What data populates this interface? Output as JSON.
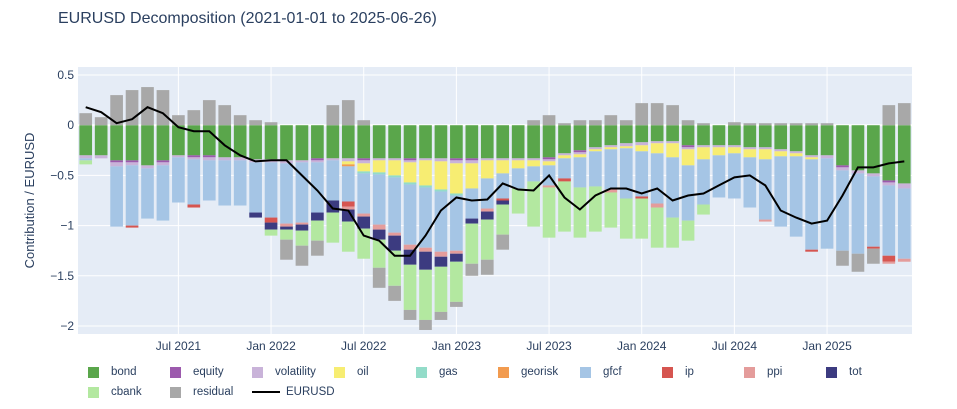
{
  "chart_data": {
    "type": "bar",
    "title": "EURUSD Decomposition (2021-01-01 to 2025-06-26)",
    "xlabel": "",
    "ylabel": "Contribution / EURUSD",
    "ylim": [
      -2.08,
      0.58
    ],
    "yticks": [
      0.5,
      0,
      -0.5,
      -1,
      -1.5,
      -2
    ],
    "ytick_labels": [
      "0.5",
      "0",
      "−0.5",
      "−1",
      "−1.5",
      "−2"
    ],
    "xtick_labels": [
      "Jul 2021",
      "Jan 2022",
      "Jul 2022",
      "Jan 2023",
      "Jul 2023",
      "Jan 2024",
      "Jul 2024",
      "Jan 2025"
    ],
    "grid": true,
    "barmode": "relative",
    "legend_position": "bottom",
    "start_month": "2021-01",
    "n_periods": 54,
    "series": [
      {
        "name": "bond",
        "color": "#5aa64b",
        "values": [
          -0.3,
          -0.3,
          -0.35,
          -0.35,
          -0.4,
          -0.35,
          -0.3,
          -0.3,
          -0.3,
          -0.32,
          -0.32,
          -0.34,
          -0.34,
          -0.35,
          -0.35,
          -0.33,
          -0.33,
          -0.33,
          -0.33,
          -0.33,
          -0.33,
          -0.33,
          -0.33,
          -0.33,
          -0.33,
          -0.33,
          -0.33,
          -0.33,
          -0.33,
          -0.33,
          -0.32,
          -0.28,
          -0.25,
          -0.22,
          -0.2,
          -0.18,
          -0.17,
          -0.16,
          -0.16,
          -0.2,
          -0.2,
          -0.2,
          -0.2,
          -0.22,
          -0.22,
          -0.24,
          -0.26,
          -0.3,
          -0.3,
          -0.4,
          -0.45,
          -0.48,
          -0.55,
          -0.58
        ]
      },
      {
        "name": "equity",
        "color": "#9c5aad",
        "values": [
          0,
          0,
          -0.02,
          -0.02,
          0,
          -0.02,
          0,
          -0.02,
          -0.02,
          0,
          0,
          0,
          0,
          0,
          0,
          -0.02,
          0,
          0,
          -0.02,
          0,
          0,
          -0.02,
          0,
          0,
          -0.02,
          -0.02,
          0,
          0,
          0,
          0,
          -0.02,
          0,
          -0.02,
          0,
          0,
          0,
          0,
          0,
          0,
          -0.02,
          0,
          0,
          0,
          0,
          0,
          0,
          0,
          0,
          0,
          -0.02,
          0,
          0,
          -0.02,
          0
        ]
      },
      {
        "name": "volatility",
        "color": "#c9b3d9",
        "values": [
          -0.03,
          -0.03,
          -0.04,
          -0.03,
          -0.03,
          -0.03,
          -0.02,
          -0.02,
          -0.03,
          -0.03,
          -0.03,
          -0.03,
          -0.03,
          -0.03,
          -0.02,
          -0.02,
          -0.02,
          -0.03,
          -0.03,
          -0.02,
          -0.02,
          -0.02,
          -0.02,
          -0.03,
          -0.03,
          -0.03,
          -0.02,
          -0.02,
          -0.02,
          -0.02,
          -0.02,
          -0.02,
          -0.02,
          -0.02,
          -0.02,
          -0.03,
          -0.03,
          -0.02,
          -0.02,
          -0.02,
          -0.02,
          -0.02,
          -0.02,
          -0.02,
          -0.02,
          -0.02,
          -0.02,
          -0.02,
          -0.03,
          -0.03,
          -0.03,
          -0.03,
          -0.03,
          -0.05
        ]
      },
      {
        "name": "oil",
        "color": "#f7ed72",
        "values": [
          0,
          0,
          0,
          0,
          0,
          0,
          0,
          0,
          0,
          0,
          0,
          0,
          0,
          0,
          0,
          0,
          0,
          -0.03,
          -0.08,
          -0.12,
          -0.15,
          -0.2,
          -0.25,
          -0.28,
          -0.3,
          -0.25,
          -0.18,
          -0.13,
          -0.08,
          -0.06,
          -0.04,
          -0.03,
          -0.03,
          -0.02,
          -0.02,
          -0.02,
          -0.06,
          -0.1,
          -0.14,
          -0.16,
          -0.12,
          -0.08,
          -0.06,
          -0.08,
          -0.1,
          -0.05,
          -0.03,
          -0.02,
          0,
          0,
          0,
          0,
          0,
          0
        ]
      },
      {
        "name": "gas",
        "color": "#93dcc9",
        "values": [
          0,
          0,
          0,
          0,
          0,
          0,
          0,
          0,
          0,
          0,
          0,
          0,
          0,
          0,
          0,
          0,
          0,
          0,
          -0.02,
          -0.02,
          -0.02,
          -0.02,
          -0.02,
          -0.02,
          -0.02,
          0,
          0,
          0,
          0,
          0,
          0,
          0,
          0,
          0,
          0,
          0,
          0,
          0,
          0,
          0,
          0,
          0,
          0,
          0,
          0,
          0,
          0,
          0,
          0,
          0,
          0,
          0,
          0,
          0
        ]
      },
      {
        "name": "georisk",
        "color": "#f29b4f",
        "values": [
          0,
          0,
          0,
          0,
          0,
          0,
          0,
          0,
          0,
          0,
          0,
          0,
          0,
          0,
          0,
          0,
          0,
          -0.02,
          0,
          0,
          0,
          0,
          0,
          0,
          0,
          0,
          0,
          0,
          0,
          0,
          0,
          0,
          0,
          0,
          0,
          0,
          0,
          0,
          0,
          0,
          0,
          0,
          0,
          0,
          0,
          0,
          0,
          0,
          0,
          0,
          0,
          0,
          0,
          0
        ]
      },
      {
        "name": "gfcf",
        "color": "#a5c5e5",
        "values": [
          -0.02,
          0,
          -0.6,
          -0.6,
          -0.5,
          -0.55,
          -0.45,
          -0.45,
          -0.4,
          -0.45,
          -0.45,
          -0.5,
          -0.55,
          -0.6,
          -0.6,
          -0.5,
          -0.4,
          -0.35,
          -0.4,
          -0.5,
          -0.55,
          -0.6,
          -0.6,
          -0.6,
          -0.55,
          -0.3,
          -0.3,
          -0.25,
          -0.2,
          -0.15,
          -0.2,
          -0.2,
          -0.3,
          -0.35,
          -0.4,
          -0.5,
          -0.45,
          -0.5,
          -0.6,
          -0.55,
          -0.45,
          -0.42,
          -0.45,
          -0.5,
          -0.6,
          -0.7,
          -0.8,
          -0.9,
          -0.9,
          -0.8,
          -0.8,
          -0.7,
          -0.7,
          -0.7
        ]
      },
      {
        "name": "ip",
        "color": "#d65550",
        "values": [
          0,
          0,
          0,
          -0.02,
          0,
          0,
          0,
          -0.03,
          0,
          0,
          0,
          0,
          -0.05,
          0,
          0,
          0,
          0,
          -0.05,
          0,
          0,
          0,
          0,
          0,
          0,
          0,
          0,
          0,
          -0.02,
          0,
          0,
          0,
          -0.03,
          0,
          0,
          0,
          0,
          -0.02,
          0,
          0,
          0,
          0,
          0,
          0,
          0,
          0,
          0,
          0,
          -0.02,
          0,
          0,
          0,
          -0.02,
          -0.06,
          0
        ]
      },
      {
        "name": "ppi",
        "color": "#e49c9b",
        "values": [
          0,
          0,
          0,
          0,
          0,
          0,
          0,
          0,
          0,
          0,
          0,
          0,
          0,
          -0.03,
          -0.02,
          0,
          0,
          -0.03,
          -0.03,
          -0.05,
          -0.03,
          -0.05,
          -0.04,
          -0.05,
          -0.03,
          0,
          -0.03,
          0,
          0,
          0,
          -0.02,
          0,
          0,
          0,
          -0.03,
          0,
          0,
          -0.04,
          0,
          0,
          0,
          0,
          0,
          0,
          -0.02,
          0,
          0,
          0,
          0,
          0,
          0,
          0,
          -0.02,
          -0.03
        ]
      },
      {
        "name": "tot",
        "color": "#3c3b80",
        "values": [
          0,
          0,
          0,
          0,
          0,
          0,
          0,
          0,
          0,
          0,
          0,
          -0.05,
          -0.07,
          -0.03,
          -0.06,
          -0.08,
          -0.12,
          -0.12,
          -0.12,
          -0.1,
          -0.15,
          -0.15,
          -0.18,
          -0.1,
          -0.08,
          -0.05,
          -0.08,
          -0.04,
          0,
          0,
          0,
          0,
          0,
          0,
          0,
          0,
          0,
          0,
          0,
          0,
          0,
          0,
          0,
          0,
          0,
          0,
          0,
          0,
          0,
          0,
          0,
          0,
          0,
          0
        ]
      },
      {
        "name": "cbank",
        "color": "#b3e8a0",
        "values": [
          -0.04,
          0,
          0,
          0,
          0,
          0,
          0,
          0,
          0,
          0,
          0,
          0,
          -0.06,
          -0.1,
          -0.15,
          -0.2,
          -0.3,
          -0.3,
          -0.3,
          -0.28,
          -0.35,
          -0.45,
          -0.5,
          -0.45,
          -0.4,
          -0.4,
          -0.4,
          -0.3,
          -0.25,
          -0.45,
          -0.5,
          -0.5,
          -0.5,
          -0.45,
          -0.35,
          -0.4,
          -0.4,
          -0.4,
          -0.3,
          -0.2,
          -0.1,
          0,
          0,
          0,
          0,
          0,
          0,
          0,
          0,
          0,
          0,
          0,
          0,
          0
        ]
      },
      {
        "name": "residual",
        "color": "#a8a8a8",
        "values": [
          0.12,
          0.08,
          0.3,
          0.35,
          0.38,
          0.35,
          0.1,
          0.15,
          0.25,
          0.2,
          0.1,
          0.05,
          0.03,
          -0.2,
          -0.2,
          -0.15,
          0.2,
          0.25,
          0.05,
          -0.2,
          -0.15,
          -0.1,
          -0.1,
          -0.08,
          -0.05,
          -0.12,
          -0.15,
          -0.15,
          0,
          0.05,
          0.1,
          0.02,
          0.05,
          0.05,
          0.1,
          0.05,
          0.22,
          0.22,
          0.2,
          0.05,
          0.02,
          0,
          0.03,
          0.02,
          0.02,
          0.02,
          0.02,
          0.02,
          0.02,
          -0.15,
          -0.18,
          -0.15,
          0.2,
          0.22
        ]
      },
      {
        "name": "EURUSD",
        "type": "line",
        "color": "#000000",
        "values": [
          0.18,
          0.13,
          0.02,
          0.06,
          0.18,
          0.12,
          -0.02,
          -0.06,
          -0.06,
          -0.2,
          -0.3,
          -0.36,
          -0.35,
          -0.35,
          -0.5,
          -0.65,
          -0.83,
          -0.85,
          -1.1,
          -1.15,
          -1.3,
          -1.3,
          -1.1,
          -0.85,
          -0.72,
          -0.75,
          -0.74,
          -0.58,
          -0.64,
          -0.65,
          -0.5,
          -0.72,
          -0.84,
          -0.7,
          -0.63,
          -0.63,
          -0.68,
          -0.63,
          -0.75,
          -0.7,
          -0.68,
          -0.6,
          -0.52,
          -0.5,
          -0.6,
          -0.85,
          -0.92,
          -0.98,
          -0.95,
          -0.7,
          -0.42,
          -0.42,
          -0.38,
          -0.36
        ]
      }
    ]
  }
}
